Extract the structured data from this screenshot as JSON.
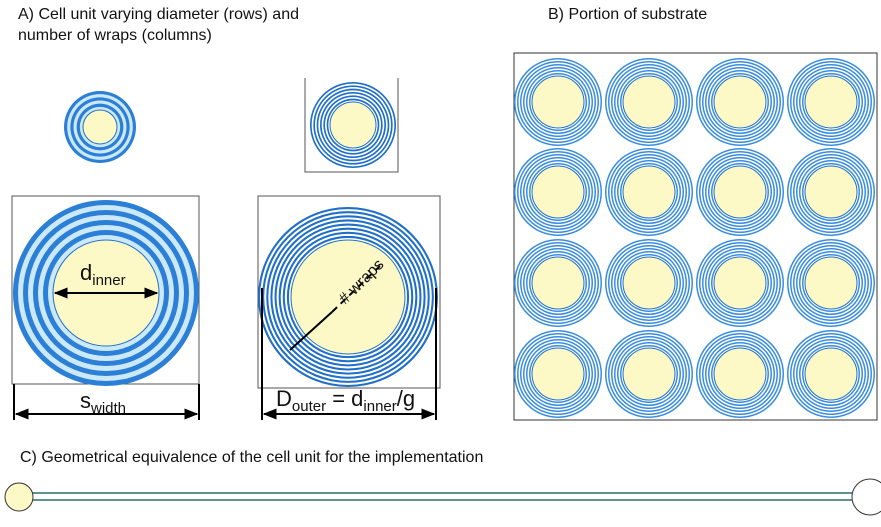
{
  "panel_a": {
    "title_line1": "A)  Cell  unit  varying  diameter  (rows)  and",
    "title_line2": "number of wraps (columns)",
    "d_inner": [
      "d",
      "inner"
    ],
    "wraps": "# wraps",
    "s_width": [
      "s",
      "width"
    ],
    "d_outer": [
      "D",
      "outer",
      " = d",
      "inner",
      "/g"
    ]
  },
  "panel_b": {
    "title": "B) Portion of substrate"
  },
  "panel_c": {
    "title": "C) Geometrical equivalence of the cell unit for the implementation"
  }
}
